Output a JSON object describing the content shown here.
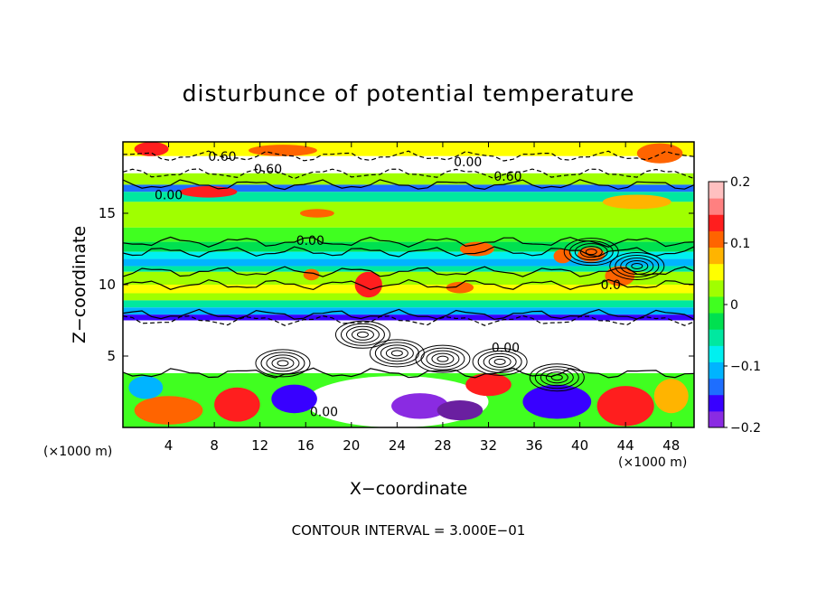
{
  "chart_data": {
    "type": "heatmap",
    "title": "disturbunce of potential temperature",
    "xlabel": "X−coordinate",
    "ylabel": "Z−coordinate",
    "x_unit": "(×1000 m)",
    "y_unit": "(×1000 m)",
    "xlim": [
      0,
      50
    ],
    "ylim": [
      0,
      20
    ],
    "xticks": [
      4,
      8,
      12,
      16,
      20,
      24,
      28,
      32,
      36,
      40,
      44,
      48
    ],
    "yticks": [
      5,
      10,
      15
    ],
    "colorbar": {
      "range": [
        -0.2,
        0.2
      ],
      "tick_values": [
        0.2,
        0.1,
        0,
        -0.1,
        -0.2
      ],
      "tick_labels": [
        "0.2",
        "0.1",
        "0",
        "−0.1",
        "−0.2"
      ],
      "colors": [
        "#8a2be2",
        "#3800ff",
        "#1e6eff",
        "#00b4ff",
        "#00f0f0",
        "#00e8a0",
        "#00e050",
        "#40ff20",
        "#a0ff00",
        "#ffff00",
        "#ffb400",
        "#ff6400",
        "#ff1e1e",
        "#ff8080",
        "#ffc0c0"
      ]
    },
    "contour_labels": [
      {
        "text": "0.60",
        "x": 8.7,
        "z": 19.0
      },
      {
        "text": "0.60",
        "x": 12.7,
        "z": 18.1
      },
      {
        "text": "0.00",
        "x": 30.2,
        "z": 18.6
      },
      {
        "text": "0.60",
        "x": 33.7,
        "z": 17.6
      },
      {
        "text": "0.00",
        "x": 4.0,
        "z": 16.3
      },
      {
        "text": "0.00",
        "x": 16.4,
        "z": 13.1
      },
      {
        "text": "0.0",
        "x": 42.7,
        "z": 10.0
      },
      {
        "text": "0.00",
        "x": 33.5,
        "z": 5.6
      },
      {
        "text": "0.00",
        "x": 17.6,
        "z": 1.1
      }
    ],
    "bands": [
      {
        "z0": 19.0,
        "z1": 20.0,
        "value": 0.05
      },
      {
        "z0": 17.8,
        "z1": 19.0,
        "value": 0.35
      },
      {
        "z0": 17.0,
        "z1": 17.8,
        "value": 0.02
      },
      {
        "z0": 16.5,
        "z1": 17.0,
        "value": -0.13
      },
      {
        "z0": 15.8,
        "z1": 16.5,
        "value": -0.06
      },
      {
        "z0": 14.0,
        "z1": 15.8,
        "value": 0.03
      },
      {
        "z0": 13.0,
        "z1": 14.0,
        "value": 0.0
      },
      {
        "z0": 12.3,
        "z1": 13.0,
        "value": -0.02
      },
      {
        "z0": 11.8,
        "z1": 12.3,
        "value": -0.07
      },
      {
        "z0": 11.3,
        "z1": 11.8,
        "value": -0.1
      },
      {
        "z0": 10.9,
        "z1": 11.3,
        "value": -0.06
      },
      {
        "z0": 10.0,
        "z1": 10.9,
        "value": 0.02
      },
      {
        "z0": 9.4,
        "z1": 10.0,
        "value": 0.06
      },
      {
        "z0": 8.9,
        "z1": 9.4,
        "value": 0.02
      },
      {
        "z0": 8.4,
        "z1": 8.9,
        "value": -0.05
      },
      {
        "z0": 7.9,
        "z1": 8.4,
        "value": -0.1
      },
      {
        "z0": 7.5,
        "z1": 7.9,
        "value": -0.15
      },
      {
        "z0": 3.8,
        "z1": 7.5,
        "value": 0.35
      },
      {
        "z0": 0.0,
        "z1": 3.8,
        "value": 0.0
      }
    ],
    "patches": [
      {
        "x": 24,
        "z": 1.8,
        "rx": 8,
        "rz": 1.8,
        "value": 0.35
      },
      {
        "x": 15,
        "z": 2.0,
        "rx": 2,
        "rz": 1.0,
        "value": -0.17
      },
      {
        "x": 26,
        "z": 1.5,
        "rx": 2.5,
        "rz": 0.9,
        "value": -0.2
      },
      {
        "x": 29.5,
        "z": 1.2,
        "rx": 2,
        "rz": 0.7,
        "value": -0.22
      },
      {
        "x": 38,
        "z": 1.8,
        "rx": 3,
        "rz": 1.2,
        "value": -0.17
      },
      {
        "x": 44,
        "z": 1.5,
        "rx": 2.5,
        "rz": 1.4,
        "value": 0.14
      },
      {
        "x": 4,
        "z": 1.2,
        "rx": 3,
        "rz": 1.0,
        "value": 0.12
      },
      {
        "x": 10,
        "z": 1.6,
        "rx": 2,
        "rz": 1.2,
        "value": 0.14
      },
      {
        "x": 2,
        "z": 2.8,
        "rx": 1.5,
        "rz": 0.8,
        "value": -0.1
      },
      {
        "x": 32,
        "z": 3.0,
        "rx": 2,
        "rz": 0.8,
        "value": 0.13
      },
      {
        "x": 48,
        "z": 2.2,
        "rx": 1.5,
        "rz": 1.2,
        "value": 0.08
      },
      {
        "x": 21.5,
        "z": 10.0,
        "rx": 1.2,
        "rz": 0.9,
        "value": 0.13
      },
      {
        "x": 31,
        "z": 12.5,
        "rx": 1.5,
        "rz": 0.5,
        "value": 0.12
      },
      {
        "x": 29.5,
        "z": 9.8,
        "rx": 1.2,
        "rz": 0.4,
        "value": 0.12
      },
      {
        "x": 38.5,
        "z": 12.0,
        "rx": 0.8,
        "rz": 0.5,
        "value": 0.12
      },
      {
        "x": 41,
        "z": 12.1,
        "rx": 1.2,
        "rz": 0.5,
        "value": 0.12
      },
      {
        "x": 43.5,
        "z": 10.6,
        "rx": 1.3,
        "rz": 0.7,
        "value": 0.12
      },
      {
        "x": 16.5,
        "z": 10.7,
        "rx": 0.7,
        "rz": 0.4,
        "value": 0.12
      },
      {
        "x": 17,
        "z": 15.0,
        "rx": 1.5,
        "rz": 0.3,
        "value": 0.12
      },
      {
        "x": 45,
        "z": 15.8,
        "rx": 3,
        "rz": 0.5,
        "value": 0.09
      },
      {
        "x": 2.5,
        "z": 19.5,
        "rx": 1.5,
        "rz": 0.5,
        "value": 0.14
      },
      {
        "x": 14,
        "z": 19.4,
        "rx": 3,
        "rz": 0.4,
        "value": 0.1
      },
      {
        "x": 47,
        "z": 19.2,
        "rx": 2,
        "rz": 0.7,
        "value": 0.12
      },
      {
        "x": 7.5,
        "z": 16.5,
        "rx": 2.5,
        "rz": 0.4,
        "value": 0.13
      }
    ],
    "annotation": "CONTOUR INTERVAL = 3.000E−01"
  }
}
